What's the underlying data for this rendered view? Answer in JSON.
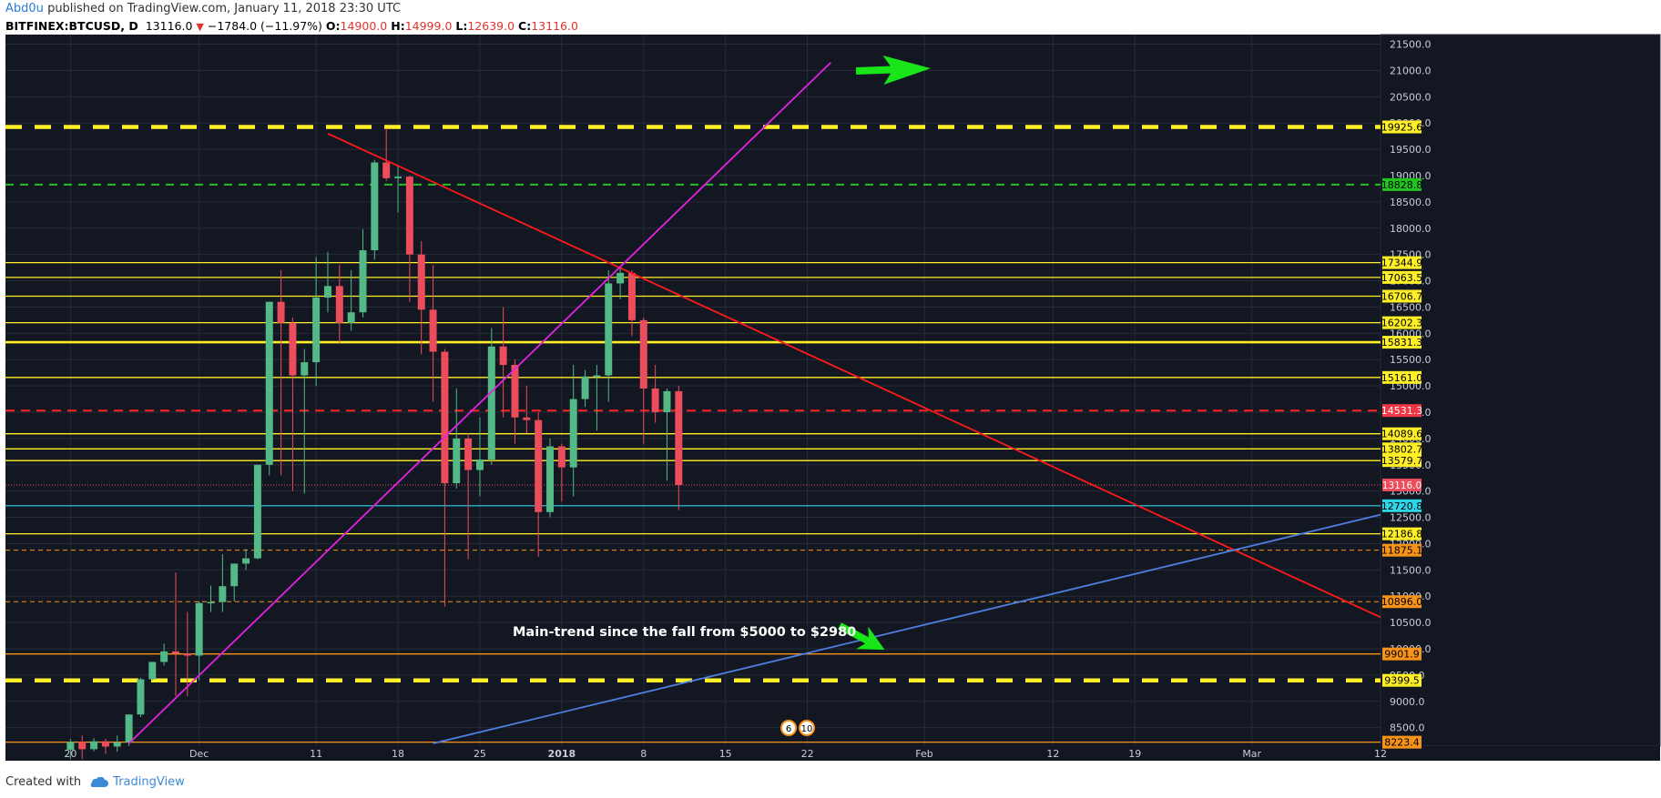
{
  "header": {
    "author": "Abd0u",
    "published_text": "published on TradingView.com, January 11, 2018 23:30 UTC",
    "symbol": "BITFINEX:BTCUSD, D",
    "last": "13116.0",
    "change": "−1784.0 (−11.97%)",
    "o_label": "O:",
    "o_value": "14900.0",
    "h_label": "H:",
    "h_value": "14999.0",
    "l_label": "L:",
    "l_value": "12639.0",
    "c_label": "C:",
    "c_value": "13116.0"
  },
  "footer": {
    "created_with": "Created with",
    "brand": "TradingView"
  },
  "colors": {
    "background": "#131722",
    "grid": "#262b3a",
    "up": "#53b987",
    "down": "#eb4d5c",
    "yellow": "#ffef26",
    "green_dash": "#1fc41f",
    "red_line": "#ff1a1a",
    "magenta": "#e222e2",
    "blue_trend": "#4d7fe0",
    "cyan": "#2fd6e8",
    "orange": "#f7931a",
    "arrow_green": "#19e619"
  },
  "chart_data": {
    "type": "candlestick",
    "symbol": "BITFINEX:BTCUSD",
    "timeframe": "D",
    "y_axis": {
      "range": [
        8200,
        21700
      ],
      "ticks": [
        8500,
        9000,
        9500,
        10000,
        10500,
        11000,
        11500,
        12000,
        12500,
        13000,
        13500,
        14000,
        14500,
        15000,
        15500,
        16000,
        16500,
        17000,
        17500,
        18000,
        18500,
        19000,
        19500,
        20000,
        20500,
        21000,
        21500
      ],
      "tick_labels": [
        "8500.0",
        "9000.0",
        "9500.0",
        "10000.0",
        "10500.0",
        "11000.0",
        "11500.0",
        "12000.0",
        "12500.0",
        "13000.0",
        "13500.0",
        "14000.0",
        "14500.0",
        "15000.0",
        "15500.0",
        "16000.0",
        "16500.0",
        "17000.0",
        "17500.0",
        "18000.0",
        "18500.0",
        "19000.0",
        "19500.0",
        "20000.0",
        "20500.0",
        "21000.0",
        "21500.0"
      ]
    },
    "x_axis": {
      "range": [
        "2017-11-16",
        "2018-03-12"
      ],
      "ticks": [
        {
          "date": "2017-11-20",
          "label": "20"
        },
        {
          "date": "2017-12-01",
          "label": "Dec"
        },
        {
          "date": "2017-12-11",
          "label": "11"
        },
        {
          "date": "2017-12-18",
          "label": "18"
        },
        {
          "date": "2017-12-25",
          "label": "25"
        },
        {
          "date": "2018-01-01",
          "label": "2018"
        },
        {
          "date": "2018-01-08",
          "label": "8"
        },
        {
          "date": "2018-01-15",
          "label": "15"
        },
        {
          "date": "2018-01-22",
          "label": "22"
        },
        {
          "date": "2018-02-01",
          "label": "Feb"
        },
        {
          "date": "2018-02-12",
          "label": "12"
        },
        {
          "date": "2018-02-19",
          "label": "19"
        },
        {
          "date": "2018-03-01",
          "label": "Mar"
        },
        {
          "date": "2018-03-12",
          "label": "12"
        }
      ]
    },
    "candles": [
      {
        "date": "2017-11-20",
        "o": 8080,
        "h": 8280,
        "l": 7900,
        "c": 8230
      },
      {
        "date": "2017-11-21",
        "o": 8230,
        "h": 8350,
        "l": 7900,
        "c": 8090
      },
      {
        "date": "2017-11-22",
        "o": 8090,
        "h": 8300,
        "l": 8050,
        "c": 8240
      },
      {
        "date": "2017-11-23",
        "o": 8240,
        "h": 8290,
        "l": 8000,
        "c": 8140
      },
      {
        "date": "2017-11-24",
        "o": 8140,
        "h": 8350,
        "l": 8040,
        "c": 8220
      },
      {
        "date": "2017-11-25",
        "o": 8220,
        "h": 8750,
        "l": 8150,
        "c": 8750
      },
      {
        "date": "2017-11-26",
        "o": 8750,
        "h": 9450,
        "l": 8700,
        "c": 9420
      },
      {
        "date": "2017-11-27",
        "o": 9420,
        "h": 9750,
        "l": 9400,
        "c": 9750
      },
      {
        "date": "2017-11-28",
        "o": 9750,
        "h": 10100,
        "l": 9680,
        "c": 9950
      },
      {
        "date": "2017-11-29",
        "o": 9950,
        "h": 11450,
        "l": 9100,
        "c": 9910
      },
      {
        "date": "2017-11-30",
        "o": 9910,
        "h": 10700,
        "l": 9100,
        "c": 9870
      },
      {
        "date": "2017-12-01",
        "o": 9870,
        "h": 10900,
        "l": 9400,
        "c": 10870
      },
      {
        "date": "2017-12-02",
        "o": 10870,
        "h": 11200,
        "l": 10700,
        "c": 10890
      },
      {
        "date": "2017-12-03",
        "o": 10890,
        "h": 11800,
        "l": 10700,
        "c": 11190
      },
      {
        "date": "2017-12-04",
        "o": 11190,
        "h": 11600,
        "l": 10900,
        "c": 11620
      },
      {
        "date": "2017-12-05",
        "o": 11620,
        "h": 11900,
        "l": 11500,
        "c": 11720
      },
      {
        "date": "2017-12-06",
        "o": 11720,
        "h": 13500,
        "l": 11700,
        "c": 13500
      },
      {
        "date": "2017-12-07",
        "o": 13500,
        "h": 16600,
        "l": 13300,
        "c": 16600
      },
      {
        "date": "2017-12-08",
        "o": 16600,
        "h": 17200,
        "l": 13300,
        "c": 16200
      },
      {
        "date": "2017-12-09",
        "o": 16200,
        "h": 16300,
        "l": 13000,
        "c": 15200
      },
      {
        "date": "2017-12-10",
        "o": 15200,
        "h": 15700,
        "l": 12950,
        "c": 15450
      },
      {
        "date": "2017-12-11",
        "o": 15450,
        "h": 17450,
        "l": 15000,
        "c": 16680
      },
      {
        "date": "2017-12-12",
        "o": 16680,
        "h": 17550,
        "l": 16400,
        "c": 16900
      },
      {
        "date": "2017-12-13",
        "o": 16900,
        "h": 17300,
        "l": 15800,
        "c": 16200
      },
      {
        "date": "2017-12-14",
        "o": 16200,
        "h": 17200,
        "l": 16050,
        "c": 16400
      },
      {
        "date": "2017-12-15",
        "o": 16400,
        "h": 17980,
        "l": 16300,
        "c": 17580
      },
      {
        "date": "2017-12-16",
        "o": 17580,
        "h": 19300,
        "l": 17400,
        "c": 19250
      },
      {
        "date": "2017-12-17",
        "o": 19250,
        "h": 19900,
        "l": 18900,
        "c": 18950
      },
      {
        "date": "2017-12-18",
        "o": 18950,
        "h": 19200,
        "l": 18300,
        "c": 18980
      },
      {
        "date": "2017-12-19",
        "o": 18980,
        "h": 19000,
        "l": 16600,
        "c": 17500
      },
      {
        "date": "2017-12-20",
        "o": 17500,
        "h": 17750,
        "l": 15600,
        "c": 16450
      },
      {
        "date": "2017-12-21",
        "o": 16450,
        "h": 17300,
        "l": 14700,
        "c": 15650
      },
      {
        "date": "2017-12-22",
        "o": 15650,
        "h": 15700,
        "l": 10800,
        "c": 13150
      },
      {
        "date": "2017-12-23",
        "o": 13150,
        "h": 14950,
        "l": 13050,
        "c": 14000
      },
      {
        "date": "2017-12-24",
        "o": 14000,
        "h": 14100,
        "l": 11700,
        "c": 13400
      },
      {
        "date": "2017-12-25",
        "o": 13400,
        "h": 14400,
        "l": 12900,
        "c": 13600
      },
      {
        "date": "2017-12-26",
        "o": 13600,
        "h": 16100,
        "l": 13500,
        "c": 15750
      },
      {
        "date": "2017-12-27",
        "o": 15750,
        "h": 16500,
        "l": 14400,
        "c": 15400
      },
      {
        "date": "2017-12-28",
        "o": 15400,
        "h": 15500,
        "l": 13900,
        "c": 14400
      },
      {
        "date": "2017-12-29",
        "o": 14400,
        "h": 15000,
        "l": 14100,
        "c": 14350
      },
      {
        "date": "2017-12-30",
        "o": 14350,
        "h": 14500,
        "l": 11750,
        "c": 12600
      },
      {
        "date": "2017-12-31",
        "o": 12600,
        "h": 14000,
        "l": 12500,
        "c": 13850
      },
      {
        "date": "2018-01-01",
        "o": 13850,
        "h": 13900,
        "l": 12800,
        "c": 13450
      },
      {
        "date": "2018-01-02",
        "o": 13450,
        "h": 15400,
        "l": 12900,
        "c": 14750
      },
      {
        "date": "2018-01-03",
        "o": 14750,
        "h": 15300,
        "l": 14600,
        "c": 15180
      },
      {
        "date": "2018-01-04",
        "o": 15180,
        "h": 15400,
        "l": 14150,
        "c": 15200
      },
      {
        "date": "2018-01-05",
        "o": 15200,
        "h": 17200,
        "l": 14700,
        "c": 16950
      },
      {
        "date": "2018-01-06",
        "o": 16950,
        "h": 17250,
        "l": 16650,
        "c": 17150
      },
      {
        "date": "2018-01-07",
        "o": 17150,
        "h": 17200,
        "l": 15950,
        "c": 16250
      },
      {
        "date": "2018-01-08",
        "o": 16250,
        "h": 16300,
        "l": 13900,
        "c": 14950
      },
      {
        "date": "2018-01-09",
        "o": 14950,
        "h": 15400,
        "l": 14300,
        "c": 14500
      },
      {
        "date": "2018-01-10",
        "o": 14500,
        "h": 14950,
        "l": 13200,
        "c": 14900
      },
      {
        "date": "2018-01-11",
        "o": 14900,
        "h": 14999,
        "l": 12639,
        "c": 13116
      }
    ],
    "horizontal_levels": [
      {
        "price": 19925.6,
        "label": "19925.6",
        "style": "yellow-dashed"
      },
      {
        "price": 18828.8,
        "label": "18828.8",
        "style": "green-dashed"
      },
      {
        "price": 17344.9,
        "label": "17344.9",
        "style": "yellow"
      },
      {
        "price": 17063.5,
        "label": "17063.5",
        "style": "yellow"
      },
      {
        "price": 16706.7,
        "label": "16706.7",
        "style": "yellow"
      },
      {
        "price": 16202.3,
        "label": "16202.3",
        "style": "yellow"
      },
      {
        "price": 15831.3,
        "label": "15831.3",
        "style": "yellow-thick"
      },
      {
        "price": 15161.0,
        "label": "15161.0",
        "style": "yellow"
      },
      {
        "price": 14531.3,
        "label": "14531.3",
        "style": "red-dashed"
      },
      {
        "price": 14089.6,
        "label": "14089.6",
        "style": "yellow"
      },
      {
        "price": 13802.7,
        "label": "13802.7",
        "style": "yellow"
      },
      {
        "price": 13579.7,
        "label": "13579.7",
        "style": "yellow"
      },
      {
        "price": 12720.8,
        "label": "12720.8",
        "style": "cyan"
      },
      {
        "price": 12186.8,
        "label": "12186.8",
        "style": "yellow"
      },
      {
        "price": 11875.1,
        "label": "11875.1",
        "style": "orange-dashed"
      },
      {
        "price": 10896.0,
        "label": "10896.0",
        "style": "orange-dashed"
      },
      {
        "price": 9901.9,
        "label": "9901.9",
        "style": "orange"
      },
      {
        "price": 9399.5,
        "label": "9399.5",
        "style": "yellow-dashed"
      },
      {
        "price": 8223.4,
        "label": "8223.4",
        "style": "orange"
      }
    ],
    "last_price": {
      "price": 13116.0,
      "label": "13116.0"
    },
    "trendlines": [
      {
        "name": "red-descending-trendline",
        "color": "red",
        "from": {
          "date": "2017-12-12",
          "price": 19800
        },
        "to": {
          "date": "2018-03-12",
          "price": 10600
        }
      },
      {
        "name": "magenta-ascending-trendline",
        "color": "magenta",
        "from": {
          "date": "2017-11-25",
          "price": 8200
        },
        "to": {
          "date": "2018-01-24",
          "price": 21150
        }
      },
      {
        "name": "blue-main-trendline",
        "color": "blue",
        "from": {
          "date": "2017-12-21",
          "price": 8200
        },
        "to": {
          "date": "2018-03-12",
          "price": 12550
        }
      }
    ],
    "annotation": {
      "text": "Main-trend since the fall from $5000 to $2980"
    },
    "event_badges": [
      {
        "text": "6"
      },
      {
        "text": "10"
      }
    ]
  }
}
